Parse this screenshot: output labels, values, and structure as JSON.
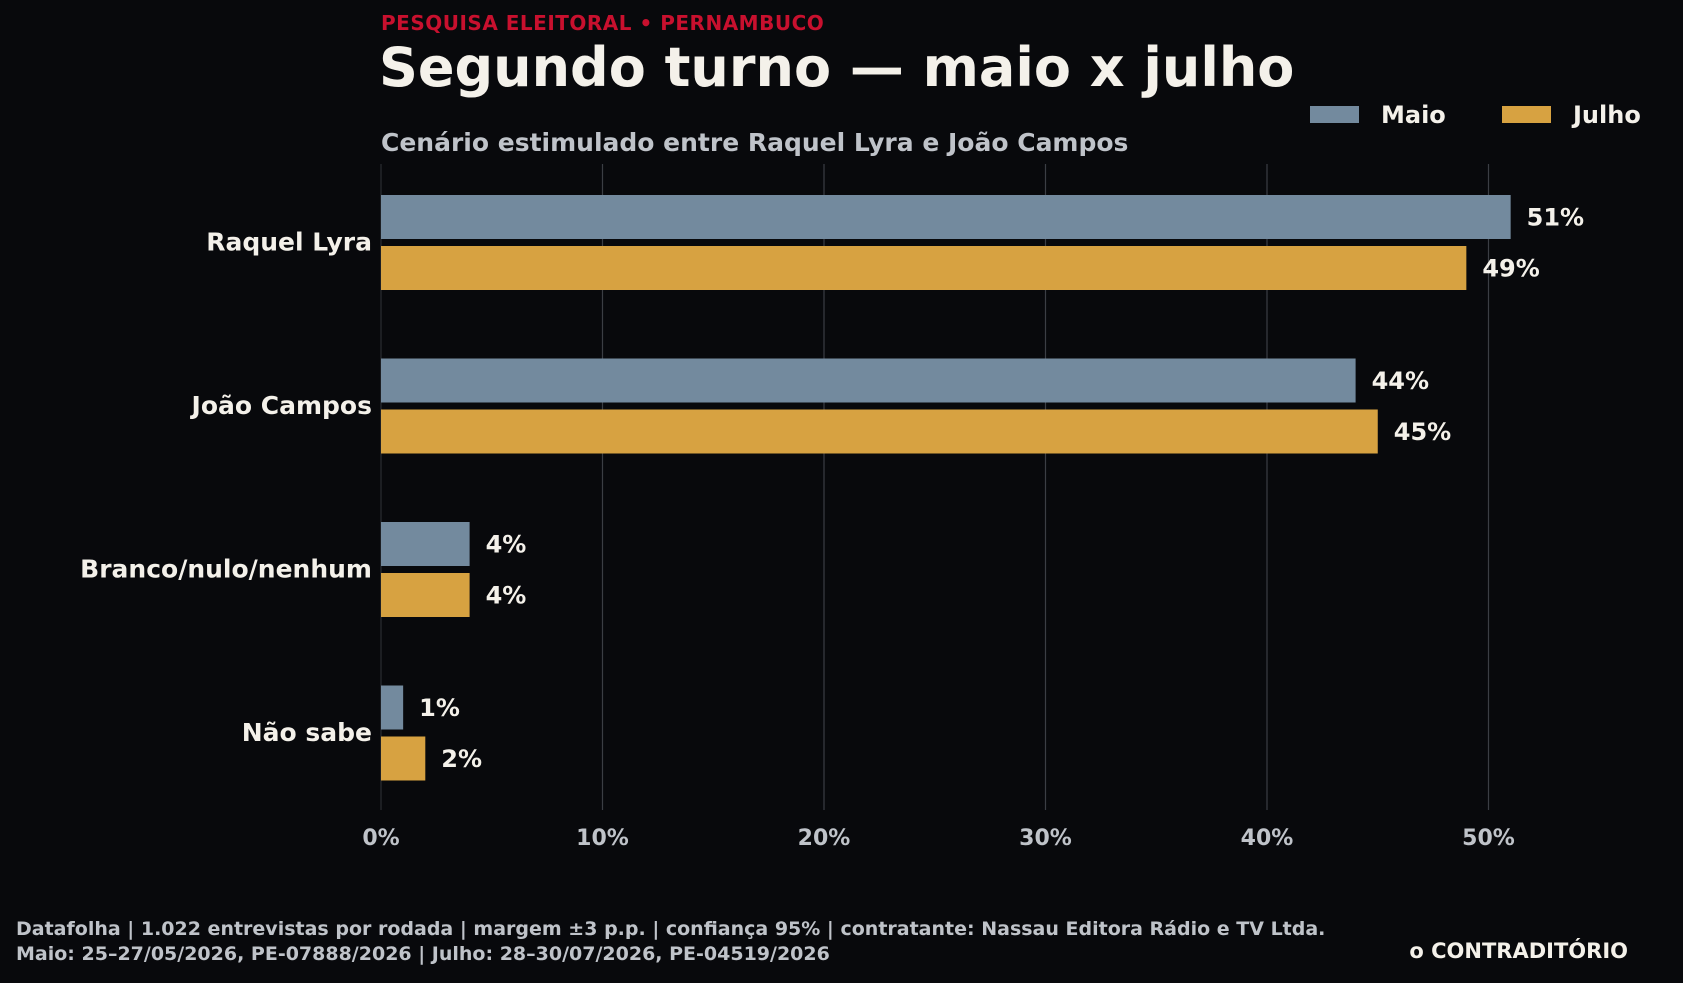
{
  "header": {
    "kicker": "PESQUISA ELEITORAL • PERNAMBUCO",
    "title": "Segundo turno — maio x julho",
    "subtitle": "Cenário estimulado entre Raquel Lyra e João Campos"
  },
  "colors": {
    "maio": "#738a9e",
    "julho": "#d7a241",
    "background": "#08090c",
    "accent": "#c8102e"
  },
  "chart_data": {
    "type": "bar",
    "orientation": "horizontal",
    "categories": [
      "Raquel Lyra",
      "João Campos",
      "Branco/nulo/nenhum",
      "Não sabe"
    ],
    "series": [
      {
        "name": "Maio",
        "values": [
          51,
          44,
          4,
          1
        ],
        "labels": [
          "51%",
          "44%",
          "4%",
          "1%"
        ]
      },
      {
        "name": "Julho",
        "values": [
          49,
          45,
          4,
          2
        ],
        "labels": [
          "49%",
          "45%",
          "4%",
          "2%"
        ]
      }
    ],
    "xlim": [
      0,
      57
    ],
    "xticks": [
      0,
      10,
      20,
      30,
      40,
      50
    ],
    "xtick_labels": [
      "0%",
      "10%",
      "20%",
      "30%",
      "40%",
      "50%"
    ],
    "grid": "vertical",
    "legend_position": "top-right"
  },
  "footer": {
    "line1": "Datafolha | 1.022 entrevistas por rodada | margem ±3 p.p. | confiança 95% | contratante: Nassau Editora Rádio e TV Ltda.",
    "line2": "Maio: 25–27/05/2026, PE-07888/2026 | Julho: 28–30/07/2026, PE-04519/2026",
    "brand": "o CONTRADITÓRIO"
  }
}
